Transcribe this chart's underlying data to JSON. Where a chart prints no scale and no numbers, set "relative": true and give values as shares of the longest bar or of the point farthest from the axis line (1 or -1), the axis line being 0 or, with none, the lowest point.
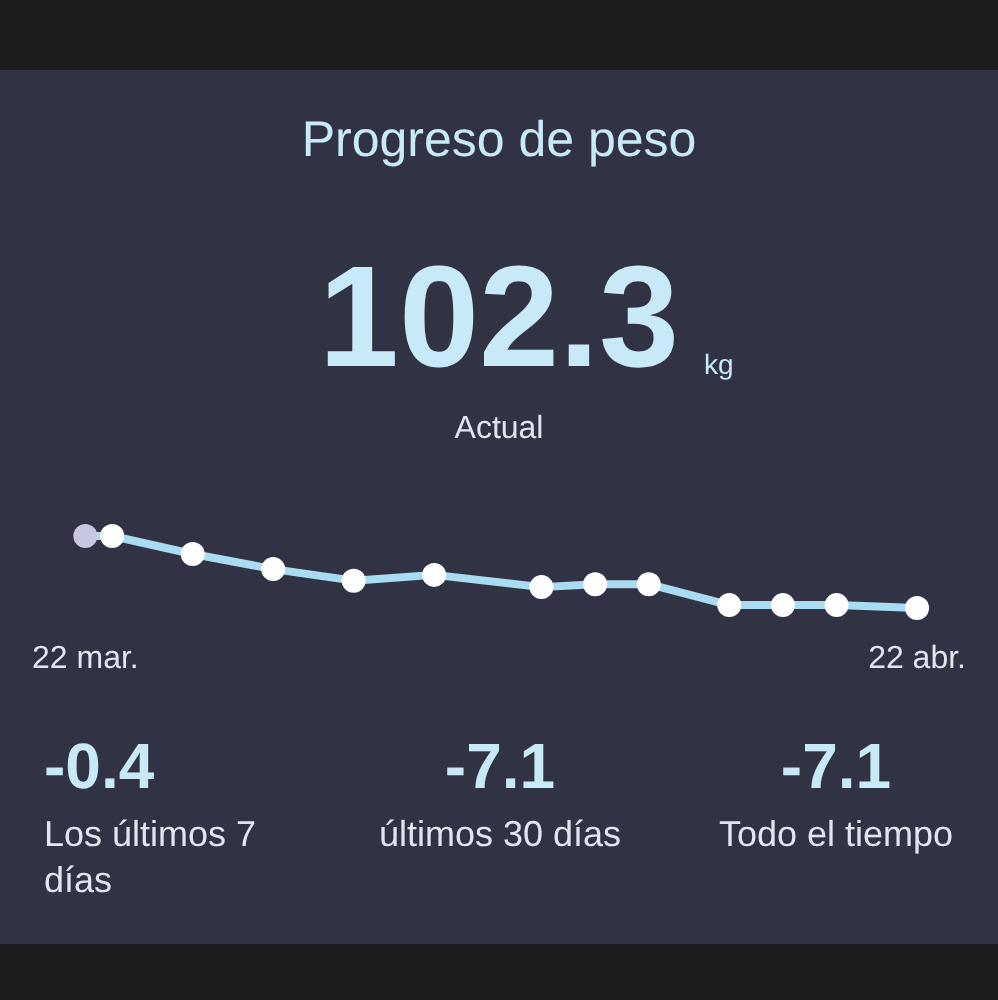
{
  "chart_data": {
    "type": "line",
    "title": "Progreso de peso",
    "annotations": [
      "102.3",
      "kg",
      "Actual",
      "-0.4",
      "Los últimos 7 días",
      "-7.1",
      "últimos 30 días",
      "-7.1",
      "Todo el tiempo"
    ],
    "x": [
      "--03-22",
      "--03-23",
      "--03-26",
      "--03-29",
      "--04-01",
      "--04-04",
      "--04-08",
      "--04-10",
      "--04-12",
      "--04-15",
      "--04-17",
      "--04-19",
      "--04-22"
    ],
    "xlim": [
      "--03-22",
      "--04-22"
    ],
    "xticks": [
      {
        "value": "--03-22",
        "label": "22 mar."
      },
      {
        "value": "--04-22",
        "label": "22 abr."
      }
    ],
    "relative": true,
    "grid": false,
    "legend": false,
    "marker": "circle",
    "line_style": "solid",
    "series": [
      {
        "color": "#a9dcf2",
        "colors": [
          "#c9c6e0",
          "#ffffff",
          "#ffffff",
          "#ffffff",
          "#ffffff",
          "#ffffff",
          "#ffffff",
          "#ffffff",
          "#ffffff",
          "#ffffff",
          "#ffffff",
          "#ffffff",
          "#ffffff"
        ],
        "values": [
          1,
          1,
          0.75,
          0.54,
          0.38,
          0.46,
          0.29,
          0.33,
          0.33,
          0.04,
          0.04,
          0.04,
          0
        ]
      }
    ]
  }
}
